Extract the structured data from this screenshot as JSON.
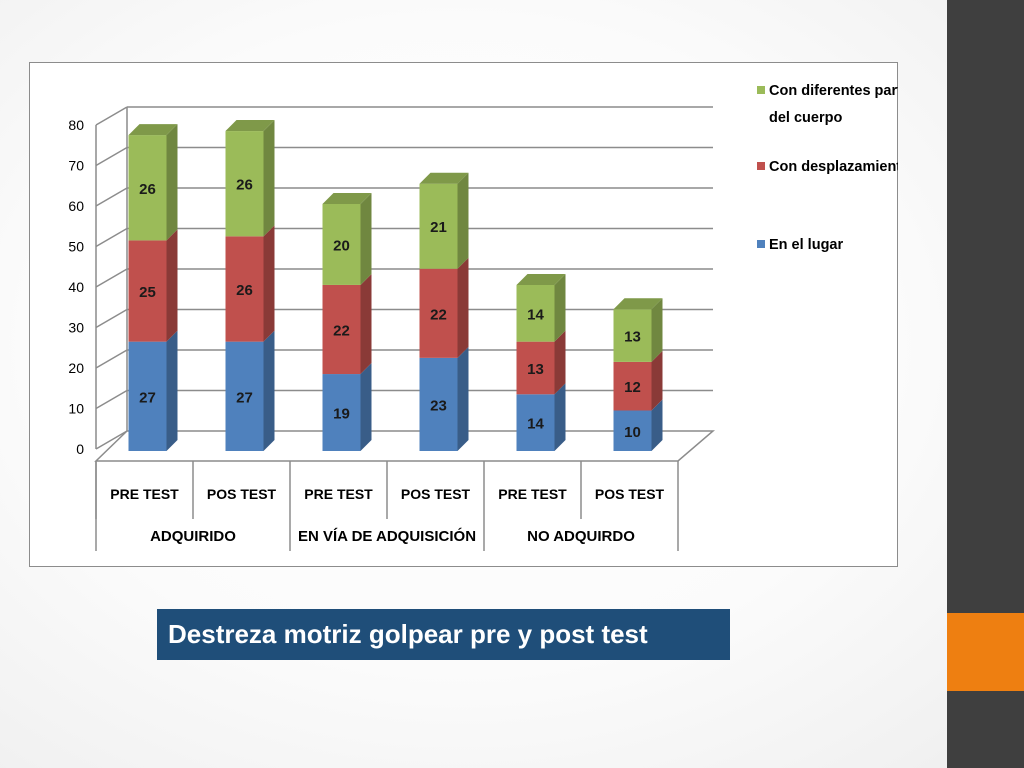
{
  "slide": {
    "caption": "Destreza motriz golpear pre y post test",
    "colors": {
      "sidebar": "#3f3f3f",
      "accent": "#ee7f11",
      "caption_bg": "#1f4e79"
    }
  },
  "chart_data": {
    "type": "bar",
    "stacked": true,
    "three_d": true,
    "title": "",
    "xlabel": "",
    "ylabel": "",
    "ylim": [
      0,
      80
    ],
    "yticks": [
      0,
      10,
      20,
      30,
      40,
      50,
      60,
      70,
      80
    ],
    "categories": [
      "PRE TEST",
      "POS TEST",
      "PRE TEST",
      "POS TEST",
      "PRE TEST",
      "POS TEST"
    ],
    "groups": [
      {
        "label": "ADQUIRIDO",
        "categories": [
          0,
          1
        ]
      },
      {
        "label": "EN VÍA DE ADQUISICIÓN",
        "categories": [
          2,
          3
        ]
      },
      {
        "label": "NO ADQUIRDO",
        "categories": [
          4,
          5
        ]
      }
    ],
    "series": [
      {
        "name": "En el lugar",
        "color": "#4f81bd",
        "values": [
          27,
          27,
          19,
          23,
          14,
          10
        ]
      },
      {
        "name": "Con desplazamiento",
        "color": "#c0504d",
        "values": [
          25,
          26,
          22,
          22,
          13,
          12
        ]
      },
      {
        "name": "Con diferentes partes del cuerpo",
        "color": "#9bbb59",
        "values": [
          26,
          26,
          20,
          21,
          14,
          13
        ]
      }
    ],
    "legend": {
      "position": "right",
      "entries": [
        {
          "series": 2,
          "lines": [
            "Con diferentes partes",
            "del cuerpo"
          ]
        },
        {
          "series": 1,
          "lines": [
            "Con desplazamiento"
          ]
        },
        {
          "series": 0,
          "lines": [
            "En el lugar"
          ]
        }
      ]
    },
    "grid": true
  }
}
